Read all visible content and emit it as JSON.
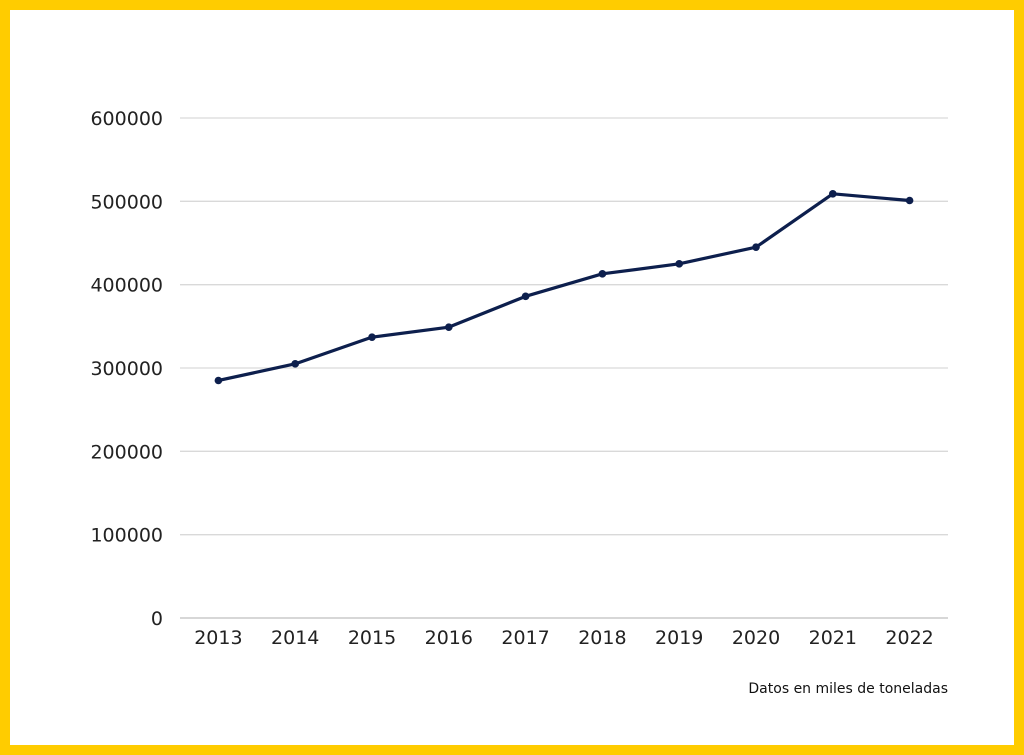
{
  "chart_data": {
    "type": "line",
    "categories": [
      "2013",
      "2014",
      "2015",
      "2016",
      "2017",
      "2018",
      "2019",
      "2020",
      "2021",
      "2022"
    ],
    "series": [
      {
        "values": [
          285000,
          305000,
          337000,
          349000,
          386000,
          413000,
          425000,
          445000,
          509000,
          501000
        ]
      }
    ],
    "yticks": [
      "0",
      "100000",
      "200000",
      "300000",
      "400000",
      "500000",
      "600000"
    ],
    "ylim": [
      0,
      600000
    ],
    "grid": true,
    "xlabel": "",
    "ylabel": "",
    "note": "Datos en miles de toneladas",
    "colors": {
      "line": "#0D1F4D",
      "grid": "#D9D9D9",
      "border": "#FFCC00"
    }
  }
}
